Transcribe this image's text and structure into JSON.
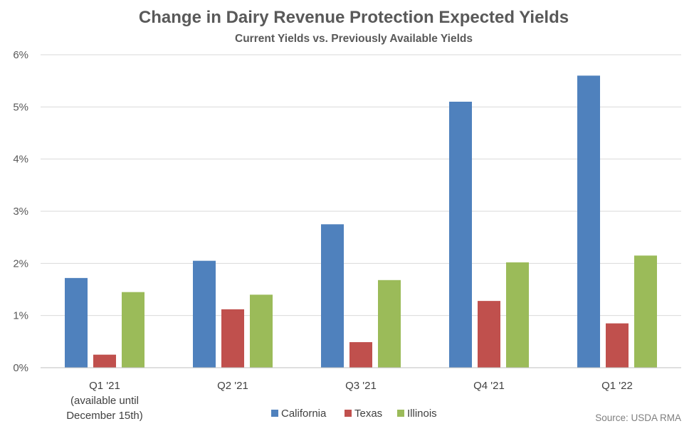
{
  "chart_data": {
    "type": "bar",
    "title": "Change in Dairy Revenue Protection Expected Yields",
    "subtitle": "Current Yields vs. Previously Available Yields",
    "categories": [
      [
        "Q1 '21",
        "(available until",
        "December 15th)"
      ],
      [
        "Q2 '21"
      ],
      [
        "Q3 '21"
      ],
      [
        "Q4 '21"
      ],
      [
        "Q1 '22"
      ]
    ],
    "series": [
      {
        "name": "California",
        "color": "#4f81bd",
        "values": [
          1.72,
          2.05,
          2.75,
          5.1,
          5.6
        ]
      },
      {
        "name": "Texas",
        "color": "#c0504d",
        "values": [
          0.25,
          1.12,
          0.49,
          1.28,
          0.85
        ]
      },
      {
        "name": "Illinois",
        "color": "#9bbb59",
        "values": [
          1.45,
          1.4,
          1.68,
          2.02,
          2.15
        ]
      }
    ],
    "yticks": [
      "0%",
      "1%",
      "2%",
      "3%",
      "4%",
      "5%",
      "6%"
    ],
    "ylim": [
      0,
      6
    ],
    "y_unit": "%",
    "grid": true,
    "legend_position": "bottom",
    "source": "Source: USDA RMA"
  }
}
